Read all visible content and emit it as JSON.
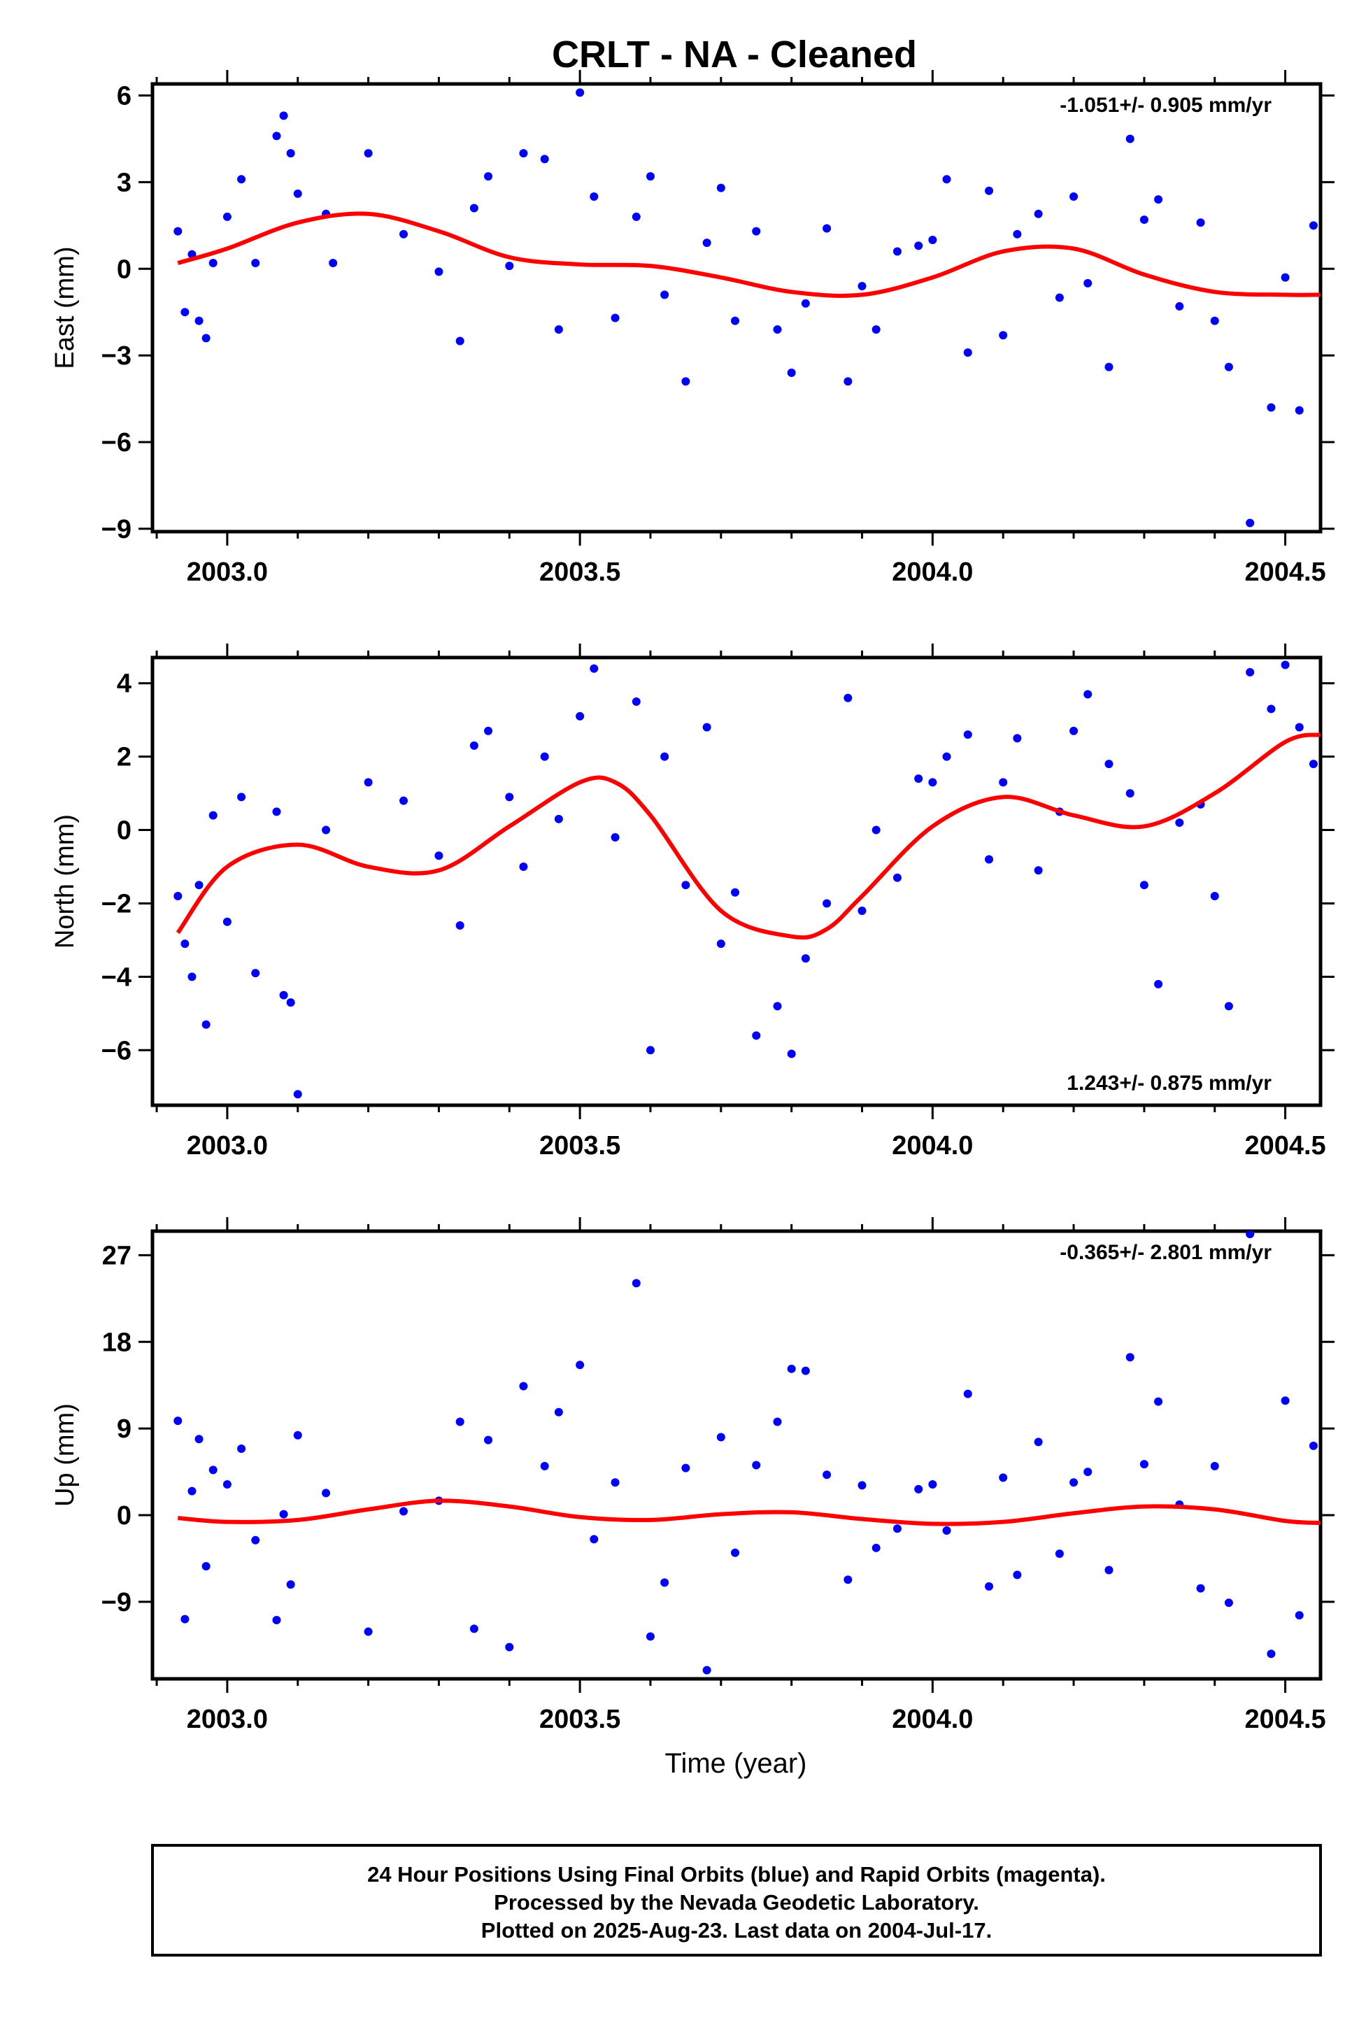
{
  "chart_data": {
    "type": "scatter",
    "title": "CRLT  - NA - Cleaned",
    "xlabel": "Time (year)",
    "x_ticks": [
      "2003.0",
      "2003.5",
      "2004.0",
      "2004.5"
    ],
    "xlim": [
      2002.894,
      2004.55
    ],
    "colors": {
      "points": "#0000ff",
      "fit": "#ff0000"
    },
    "panels": [
      {
        "name": "east",
        "ylabel": "East (mm)",
        "ylim": [
          -9.1,
          6.4
        ],
        "y_ticks": [
          "6",
          "3",
          "0",
          "−3",
          "−6",
          "−9"
        ],
        "y_tick_values": [
          6,
          3,
          0,
          -3,
          -6,
          -9
        ],
        "rate_label": "-1.051+/- 0.905 mm/yr",
        "rate_position": "top-right",
        "fit": {
          "x": [
            2002.93,
            2003.0,
            2003.1,
            2003.2,
            2003.3,
            2003.4,
            2003.5,
            2003.6,
            2003.7,
            2003.8,
            2003.9,
            2004.0,
            2004.1,
            2004.2,
            2004.3,
            2004.4,
            2004.5,
            2004.55
          ],
          "y": [
            0.2,
            0.7,
            1.6,
            1.9,
            1.3,
            0.4,
            0.15,
            0.1,
            -0.3,
            -0.8,
            -0.9,
            -0.3,
            0.6,
            0.7,
            -0.2,
            -0.8,
            -0.9,
            -0.9
          ]
        },
        "points": {
          "x": [
            2002.93,
            2002.94,
            2002.95,
            2002.96,
            2002.97,
            2002.98,
            2003.0,
            2003.02,
            2003.04,
            2003.07,
            2003.08,
            2003.09,
            2003.1,
            2003.14,
            2003.15,
            2003.2,
            2003.25,
            2003.3,
            2003.33,
            2003.35,
            2003.37,
            2003.4,
            2003.42,
            2003.45,
            2003.47,
            2003.5,
            2003.52,
            2003.55,
            2003.58,
            2003.6,
            2003.62,
            2003.65,
            2003.68,
            2003.7,
            2003.72,
            2003.75,
            2003.78,
            2003.8,
            2003.82,
            2003.85,
            2003.88,
            2003.9,
            2003.92,
            2003.95,
            2003.98,
            2004.0,
            2004.02,
            2004.05,
            2004.08,
            2004.1,
            2004.12,
            2004.15,
            2004.18,
            2004.2,
            2004.22,
            2004.25,
            2004.28,
            2004.3,
            2004.32,
            2004.35,
            2004.38,
            2004.4,
            2004.42,
            2004.45,
            2004.48,
            2004.5,
            2004.52,
            2004.54
          ],
          "y": [
            1.3,
            -1.5,
            0.5,
            -1.8,
            -2.4,
            0.2,
            1.8,
            3.1,
            0.2,
            4.6,
            5.3,
            4.0,
            2.6,
            1.9,
            0.2,
            4.0,
            1.2,
            -0.1,
            -2.5,
            2.1,
            3.2,
            0.1,
            4.0,
            3.8,
            -2.1,
            6.1,
            2.5,
            -1.7,
            1.8,
            3.2,
            -0.9,
            -3.9,
            0.9,
            2.8,
            -1.8,
            1.3,
            -2.1,
            -3.6,
            -1.2,
            1.4,
            -3.9,
            -0.6,
            -2.1,
            0.6,
            0.8,
            1.0,
            3.1,
            -2.9,
            2.7,
            -2.3,
            1.2,
            1.9,
            -1.0,
            2.5,
            -0.5,
            -3.4,
            4.5,
            1.7,
            2.4,
            -1.3,
            1.6,
            -1.8,
            -3.4,
            -8.8,
            -4.8,
            -0.3,
            -4.9,
            1.5
          ]
        }
      },
      {
        "name": "north",
        "ylabel": "North (mm)",
        "ylim": [
          -7.5,
          4.7
        ],
        "y_ticks": [
          "4",
          "2",
          "0",
          "−2",
          "−4",
          "−6"
        ],
        "y_tick_values": [
          4,
          2,
          0,
          -2,
          -4,
          -6
        ],
        "rate_label": "1.243+/- 0.875 mm/yr",
        "rate_position": "bottom-right",
        "fit": {
          "x": [
            2002.93,
            2003.0,
            2003.1,
            2003.2,
            2003.3,
            2003.4,
            2003.5,
            2003.55,
            2003.6,
            2003.7,
            2003.8,
            2003.85,
            2003.9,
            2004.0,
            2004.1,
            2004.2,
            2004.3,
            2004.4,
            2004.5,
            2004.55
          ],
          "y": [
            -2.8,
            -1.0,
            -0.4,
            -1.0,
            -1.1,
            0.1,
            1.3,
            1.3,
            0.4,
            -2.2,
            -2.9,
            -2.7,
            -1.8,
            0.1,
            0.9,
            0.4,
            0.1,
            1.0,
            2.4,
            2.6
          ]
        },
        "points": {
          "x": [
            2002.93,
            2002.94,
            2002.95,
            2002.96,
            2002.97,
            2002.98,
            2003.0,
            2003.02,
            2003.04,
            2003.07,
            2003.08,
            2003.09,
            2003.1,
            2003.14,
            2003.2,
            2003.25,
            2003.3,
            2003.33,
            2003.35,
            2003.37,
            2003.4,
            2003.42,
            2003.45,
            2003.47,
            2003.5,
            2003.52,
            2003.55,
            2003.58,
            2003.6,
            2003.62,
            2003.65,
            2003.68,
            2003.7,
            2003.72,
            2003.75,
            2003.78,
            2003.8,
            2003.82,
            2003.85,
            2003.88,
            2003.9,
            2003.92,
            2003.95,
            2003.98,
            2004.0,
            2004.02,
            2004.05,
            2004.08,
            2004.1,
            2004.12,
            2004.15,
            2004.18,
            2004.2,
            2004.22,
            2004.25,
            2004.28,
            2004.3,
            2004.32,
            2004.35,
            2004.38,
            2004.4,
            2004.42,
            2004.45,
            2004.48,
            2004.5,
            2004.52,
            2004.54
          ],
          "y": [
            -1.8,
            -3.1,
            -4.0,
            -1.5,
            -5.3,
            0.4,
            -2.5,
            0.9,
            -3.9,
            0.5,
            -4.5,
            -4.7,
            -7.2,
            0.0,
            1.3,
            0.8,
            -0.7,
            -2.6,
            2.3,
            2.7,
            0.9,
            -1.0,
            2.0,
            0.3,
            3.1,
            4.4,
            -0.2,
            3.5,
            -6.0,
            2.0,
            -1.5,
            2.8,
            -3.1,
            -1.7,
            -5.6,
            -4.8,
            -6.1,
            -3.5,
            -2.0,
            3.6,
            -2.2,
            0.0,
            -1.3,
            1.4,
            1.3,
            2.0,
            2.6,
            -0.8,
            1.3,
            2.5,
            -1.1,
            0.5,
            2.7,
            3.7,
            1.8,
            1.0,
            -1.5,
            -4.2,
            0.2,
            0.7,
            -1.8,
            -4.8,
            4.3,
            3.3,
            4.5,
            2.8,
            1.8
          ]
        }
      },
      {
        "name": "up",
        "ylabel": "Up (mm)",
        "ylim": [
          -17.0,
          29.5
        ],
        "y_ticks": [
          "27",
          "18",
          "9",
          "0",
          "−9"
        ],
        "y_tick_values": [
          27,
          18,
          9,
          0,
          -9
        ],
        "rate_label": "-0.365+/- 2.801 mm/yr",
        "rate_position": "top-right",
        "fit": {
          "x": [
            2002.93,
            2003.0,
            2003.1,
            2003.2,
            2003.3,
            2003.4,
            2003.5,
            2003.6,
            2003.7,
            2003.8,
            2003.9,
            2004.0,
            2004.1,
            2004.2,
            2004.3,
            2004.4,
            2004.5,
            2004.55
          ],
          "y": [
            -0.3,
            -0.7,
            -0.5,
            0.6,
            1.5,
            0.9,
            -0.2,
            -0.5,
            0.1,
            0.3,
            -0.4,
            -0.9,
            -0.7,
            0.2,
            0.9,
            0.6,
            -0.6,
            -0.8
          ]
        },
        "points": {
          "x": [
            2002.93,
            2002.94,
            2002.95,
            2002.96,
            2002.97,
            2002.98,
            2003.0,
            2003.02,
            2003.04,
            2003.07,
            2003.08,
            2003.09,
            2003.1,
            2003.14,
            2003.2,
            2003.25,
            2003.3,
            2003.33,
            2003.35,
            2003.37,
            2003.4,
            2003.42,
            2003.45,
            2003.47,
            2003.5,
            2003.52,
            2003.55,
            2003.58,
            2003.6,
            2003.62,
            2003.65,
            2003.68,
            2003.7,
            2003.72,
            2003.75,
            2003.78,
            2003.8,
            2003.82,
            2003.85,
            2003.88,
            2003.9,
            2003.92,
            2003.95,
            2003.98,
            2004.0,
            2004.02,
            2004.05,
            2004.08,
            2004.1,
            2004.12,
            2004.15,
            2004.18,
            2004.2,
            2004.22,
            2004.25,
            2004.28,
            2004.3,
            2004.32,
            2004.35,
            2004.38,
            2004.4,
            2004.42,
            2004.45,
            2004.48,
            2004.5,
            2004.52,
            2004.54
          ],
          "y": [
            9.8,
            -10.8,
            2.5,
            7.9,
            -5.3,
            4.7,
            3.2,
            6.9,
            -2.6,
            -10.9,
            0.1,
            -7.2,
            8.3,
            2.3,
            -12.1,
            0.4,
            1.5,
            9.7,
            -11.8,
            7.8,
            -13.7,
            13.4,
            5.1,
            10.7,
            15.6,
            -2.5,
            3.4,
            24.1,
            -12.6,
            -7.0,
            4.9,
            -16.1,
            8.1,
            -3.9,
            5.2,
            9.7,
            15.2,
            15.0,
            4.2,
            -6.7,
            3.1,
            -3.4,
            -1.4,
            2.7,
            3.2,
            -1.6,
            12.6,
            -7.4,
            3.9,
            -6.2,
            7.6,
            -4.0,
            3.4,
            4.5,
            -5.7,
            16.4,
            5.3,
            11.8,
            1.1,
            -7.6,
            5.1,
            -9.1,
            29.2,
            -14.4,
            11.9,
            -10.4,
            7.2
          ]
        }
      }
    ]
  },
  "footer": {
    "line1": "24 Hour Positions Using Final Orbits (blue) and Rapid Orbits (magenta).",
    "line2": "Processed by the Nevada Geodetic Laboratory.",
    "line3": "Plotted on 2025-Aug-23. Last data on 2004-Jul-17."
  }
}
